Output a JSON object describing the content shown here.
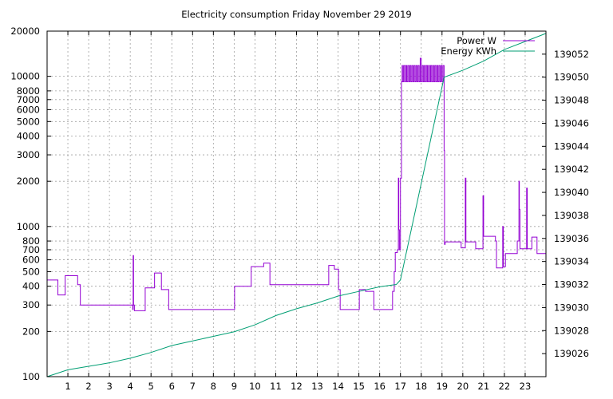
{
  "chart_data": {
    "type": "line",
    "title": "Electricity consumption Friday November 29 2019",
    "xlabel": "",
    "ylabel": "",
    "y2label": "",
    "x_range": [
      0,
      24
    ],
    "x_ticks": [
      1,
      2,
      3,
      4,
      5,
      6,
      7,
      8,
      9,
      10,
      11,
      12,
      13,
      14,
      15,
      16,
      17,
      18,
      19,
      20,
      21,
      22,
      23
    ],
    "ylim": [
      100,
      20000
    ],
    "y_scale": "log",
    "y_ticks": [
      100,
      200,
      300,
      400,
      500,
      600,
      700,
      800,
      1000,
      2000,
      3000,
      4000,
      5000,
      6000,
      7000,
      8000,
      10000,
      20000
    ],
    "y2lim": [
      139024,
      139054
    ],
    "y2_ticks": [
      139026,
      139028,
      139030,
      139032,
      139034,
      139036,
      139038,
      139040,
      139042,
      139044,
      139046,
      139048,
      139050,
      139052
    ],
    "grid": true,
    "legend_position": "top-right",
    "series": [
      {
        "name": "Power W",
        "color": "#9400d3",
        "axis": "left",
        "step": true,
        "points": [
          [
            0,
            440
          ],
          [
            0.5,
            440
          ],
          [
            0.52,
            350
          ],
          [
            0.85,
            350
          ],
          [
            0.87,
            470
          ],
          [
            1.45,
            470
          ],
          [
            1.47,
            410
          ],
          [
            1.55,
            410
          ],
          [
            1.6,
            300
          ],
          [
            4.1,
            300
          ],
          [
            4.12,
            280
          ],
          [
            4.14,
            640
          ],
          [
            4.16,
            300
          ],
          [
            4.2,
            275
          ],
          [
            4.7,
            275
          ],
          [
            4.72,
            390
          ],
          [
            5.15,
            390
          ],
          [
            5.17,
            490
          ],
          [
            5.45,
            490
          ],
          [
            5.5,
            380
          ],
          [
            5.8,
            380
          ],
          [
            5.85,
            280
          ],
          [
            9.0,
            280
          ],
          [
            9.02,
            400
          ],
          [
            9.8,
            400
          ],
          [
            9.82,
            540
          ],
          [
            10.4,
            540
          ],
          [
            10.42,
            570
          ],
          [
            10.7,
            570
          ],
          [
            10.72,
            410
          ],
          [
            11.5,
            410
          ],
          [
            11.55,
            410
          ],
          [
            13.5,
            410
          ],
          [
            13.55,
            550
          ],
          [
            13.8,
            550
          ],
          [
            13.82,
            520
          ],
          [
            14.0,
            520
          ],
          [
            14.02,
            380
          ],
          [
            14.1,
            280
          ],
          [
            15.0,
            280
          ],
          [
            15.02,
            380
          ],
          [
            15.3,
            380
          ],
          [
            15.32,
            370
          ],
          [
            15.7,
            370
          ],
          [
            15.72,
            280
          ],
          [
            16.5,
            280
          ],
          [
            16.52,
            280
          ],
          [
            16.6,
            280
          ],
          [
            16.62,
            370
          ],
          [
            16.7,
            500
          ],
          [
            16.75,
            670
          ],
          [
            16.85,
            700
          ],
          [
            16.9,
            2100
          ],
          [
            16.92,
            950
          ],
          [
            16.95,
            700
          ],
          [
            17.0,
            2100
          ],
          [
            17.05,
            9200
          ],
          [
            17.08,
            11800
          ],
          [
            17.1,
            9200
          ],
          [
            17.15,
            11800
          ],
          [
            17.2,
            9200
          ],
          [
            17.25,
            11800
          ],
          [
            17.3,
            9200
          ],
          [
            17.35,
            11800
          ],
          [
            17.4,
            9200
          ],
          [
            17.45,
            11800
          ],
          [
            17.5,
            9200
          ],
          [
            17.55,
            11800
          ],
          [
            17.6,
            9200
          ],
          [
            17.65,
            11800
          ],
          [
            17.7,
            9200
          ],
          [
            17.75,
            11800
          ],
          [
            17.8,
            9200
          ],
          [
            17.85,
            11800
          ],
          [
            17.9,
            9200
          ],
          [
            17.95,
            13200
          ],
          [
            18.0,
            9200
          ],
          [
            18.05,
            11800
          ],
          [
            18.1,
            9200
          ],
          [
            18.15,
            11800
          ],
          [
            18.2,
            9200
          ],
          [
            18.25,
            11800
          ],
          [
            18.3,
            9200
          ],
          [
            18.35,
            11800
          ],
          [
            18.4,
            9200
          ],
          [
            18.45,
            11800
          ],
          [
            18.5,
            9200
          ],
          [
            18.55,
            11800
          ],
          [
            18.6,
            9200
          ],
          [
            18.65,
            11800
          ],
          [
            18.7,
            9200
          ],
          [
            18.75,
            11800
          ],
          [
            18.8,
            9200
          ],
          [
            18.85,
            11800
          ],
          [
            18.9,
            9200
          ],
          [
            18.95,
            11800
          ],
          [
            19.0,
            9200
          ],
          [
            19.05,
            11800
          ],
          [
            19.1,
            3200
          ],
          [
            19.12,
            760
          ],
          [
            19.15,
            790
          ],
          [
            19.9,
            790
          ],
          [
            19.92,
            720
          ],
          [
            20.1,
            720
          ],
          [
            20.12,
            2100
          ],
          [
            20.15,
            790
          ],
          [
            20.6,
            790
          ],
          [
            20.62,
            710
          ],
          [
            20.95,
            710
          ],
          [
            20.97,
            1600
          ],
          [
            21.0,
            860
          ],
          [
            21.55,
            860
          ],
          [
            21.57,
            800
          ],
          [
            21.62,
            530
          ],
          [
            21.9,
            530
          ],
          [
            21.92,
            1000
          ],
          [
            21.95,
            540
          ],
          [
            22.05,
            660
          ],
          [
            22.6,
            660
          ],
          [
            22.62,
            800
          ],
          [
            22.7,
            2000
          ],
          [
            22.72,
            1300
          ],
          [
            22.75,
            710
          ],
          [
            23.05,
            710
          ],
          [
            23.07,
            1800
          ],
          [
            23.1,
            710
          ],
          [
            23.3,
            710
          ],
          [
            23.32,
            850
          ],
          [
            23.55,
            850
          ],
          [
            23.57,
            660
          ],
          [
            24,
            660
          ]
        ]
      },
      {
        "name": "Energy KWh",
        "color": "#009e73",
        "axis": "right",
        "step": false,
        "points": [
          [
            0,
            139024.0
          ],
          [
            1,
            139024.6
          ],
          [
            2,
            139024.9
          ],
          [
            3,
            139025.2
          ],
          [
            4,
            139025.6
          ],
          [
            5,
            139026.1
          ],
          [
            6,
            139026.7
          ],
          [
            7,
            139027.1
          ],
          [
            8,
            139027.5
          ],
          [
            9,
            139027.9
          ],
          [
            10,
            139028.5
          ],
          [
            11,
            139029.3
          ],
          [
            12,
            139029.9
          ],
          [
            13,
            139030.4
          ],
          [
            14,
            139031.0
          ],
          [
            15,
            139031.4
          ],
          [
            16,
            139031.8
          ],
          [
            16.8,
            139032.0
          ],
          [
            17.0,
            139032.4
          ],
          [
            19.1,
            139050.0
          ],
          [
            20,
            139050.6
          ],
          [
            21,
            139051.4
          ],
          [
            22,
            139052.4
          ],
          [
            23,
            139053.1
          ],
          [
            24,
            139053.8
          ]
        ]
      }
    ]
  }
}
